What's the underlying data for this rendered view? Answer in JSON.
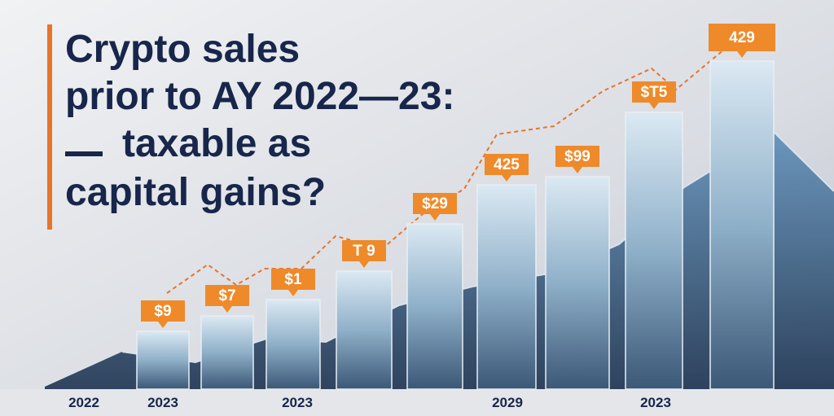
{
  "title_lines": [
    "Crypto sales",
    "prior to AY 2022—23:",
    "taxable  as",
    "capital gains?"
  ],
  "callouts": [
    "$9",
    "$7",
    "$1",
    "T 9",
    "$29",
    "425",
    "$99",
    "$T5",
    "429"
  ],
  "x_labels": [
    "2022",
    "2023",
    "2023",
    "2029",
    "2023"
  ]
}
